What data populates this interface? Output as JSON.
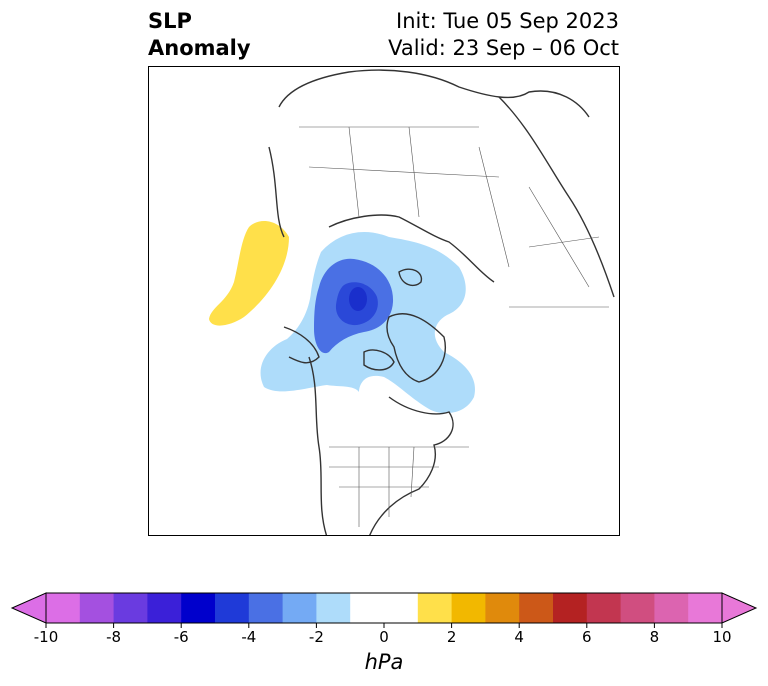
{
  "title": {
    "left_line1": "SLP",
    "left_line2": "Anomaly",
    "right_line1": "Init: Tue 05 Sep 2023",
    "right_line2": "Valid: 23 Sep – 06 Oct"
  },
  "colorbar": {
    "unit": "hPa",
    "tick_labels": [
      "-10",
      "-8",
      "-6",
      "-4",
      "-2",
      "0",
      "2",
      "4",
      "6",
      "8",
      "10"
    ],
    "colors": [
      "#dc6ee6",
      "#a450e0",
      "#6a3be0",
      "#3b20d8",
      "#0000cc",
      "#1f3ad8",
      "#4a70e4",
      "#74aaf4",
      "#aedcfa",
      "#ffffff",
      "#ffffff",
      "#ffe04a",
      "#f2b800",
      "#e08a0c",
      "#cc5818",
      "#b42222",
      "#c23650",
      "#d04e80",
      "#dc64b0",
      "#e878d8"
    ],
    "extend": "both"
  },
  "map": {
    "projection": "north polar stereographic",
    "anomalies": [
      {
        "name": "negative-anomaly-arctic",
        "level": "-2 to -6 hPa",
        "color": "#aedcfa"
      },
      {
        "name": "positive-anomaly-north-pacific",
        "level": "2 to 3 hPa",
        "color": "#ffe04a"
      }
    ]
  }
}
